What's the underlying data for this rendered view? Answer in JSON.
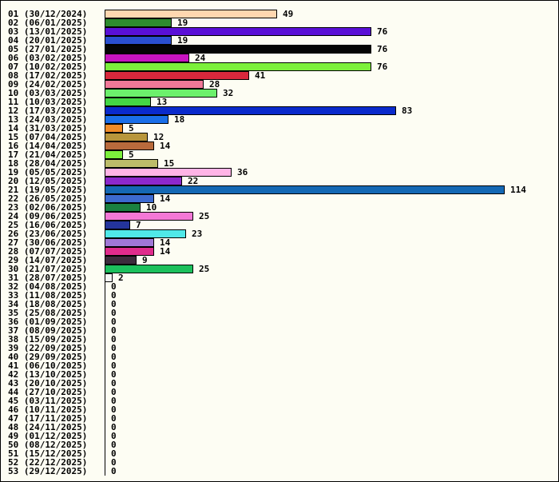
{
  "chart_data": {
    "type": "bar",
    "orientation": "horizontal",
    "categories": [
      "01 (30/12/2024)",
      "02 (06/01/2025)",
      "03 (13/01/2025)",
      "04 (20/01/2025)",
      "05 (27/01/2025)",
      "06 (03/02/2025)",
      "07 (10/02/2025)",
      "08 (17/02/2025)",
      "09 (24/02/2025)",
      "10 (03/03/2025)",
      "11 (10/03/2025)",
      "12 (17/03/2025)",
      "13 (24/03/2025)",
      "14 (31/03/2025)",
      "15 (07/04/2025)",
      "16 (14/04/2025)",
      "17 (21/04/2025)",
      "18 (28/04/2025)",
      "19 (05/05/2025)",
      "20 (12/05/2025)",
      "21 (19/05/2025)",
      "22 (26/05/2025)",
      "23 (02/06/2025)",
      "24 (09/06/2025)",
      "25 (16/06/2025)",
      "26 (23/06/2025)",
      "27 (30/06/2025)",
      "28 (07/07/2025)",
      "29 (14/07/2025)",
      "30 (21/07/2025)",
      "31 (28/07/2025)",
      "32 (04/08/2025)",
      "33 (11/08/2025)",
      "34 (18/08/2025)",
      "35 (25/08/2025)",
      "36 (01/09/2025)",
      "37 (08/09/2025)",
      "38 (15/09/2025)",
      "39 (22/09/2025)",
      "40 (29/09/2025)",
      "41 (06/10/2025)",
      "42 (13/10/2025)",
      "43 (20/10/2025)",
      "44 (27/10/2025)",
      "45 (03/11/2025)",
      "46 (10/11/2025)",
      "47 (17/11/2025)",
      "48 (24/11/2025)",
      "49 (01/12/2025)",
      "50 (08/12/2025)",
      "51 (15/12/2025)",
      "52 (22/12/2025)",
      "53 (29/12/2025)"
    ],
    "values": [
      49,
      19,
      76,
      19,
      76,
      24,
      76,
      41,
      28,
      32,
      13,
      83,
      18,
      5,
      12,
      14,
      5,
      15,
      36,
      22,
      114,
      14,
      10,
      25,
      7,
      23,
      14,
      14,
      9,
      25,
      2,
      0,
      0,
      0,
      0,
      0,
      0,
      0,
      0,
      0,
      0,
      0,
      0,
      0,
      0,
      0,
      0,
      0,
      0,
      0,
      0,
      0,
      0
    ],
    "colors": [
      "#ffd7b0",
      "#2e8b2e",
      "#5a10d6",
      "#2a4fd0",
      "#050505",
      "#c814c0",
      "#7cf03c",
      "#d8283c",
      "#f07898",
      "#6cf06c",
      "#44d644",
      "#0a2acc",
      "#1a6ee8",
      "#f08c28",
      "#b8963c",
      "#b86a3c",
      "#7cf03c",
      "#bcbc6a",
      "#ffb4e6",
      "#8c28cc",
      "#1468b4",
      "#3c6ad0",
      "#1a8040",
      "#f478d6",
      "#24349c",
      "#50e8e8",
      "#a078d6",
      "#e02c8c",
      "#3c2c3c",
      "#1cc05c",
      "#f4f4f4",
      "#ffffff",
      "#ffffff",
      "#ffffff",
      "#ffffff",
      "#ffffff",
      "#ffffff",
      "#ffffff",
      "#ffffff",
      "#ffffff",
      "#ffffff",
      "#ffffff",
      "#ffffff",
      "#ffffff",
      "#ffffff",
      "#ffffff",
      "#ffffff",
      "#ffffff",
      "#ffffff",
      "#ffffff",
      "#ffffff",
      "#ffffff",
      "#ffffff"
    ],
    "title": "",
    "xlabel": "",
    "ylabel": "",
    "xlim": [
      0,
      114
    ],
    "grid": false,
    "legend": "none",
    "data_labels": true,
    "background": "#fdfdf3"
  }
}
